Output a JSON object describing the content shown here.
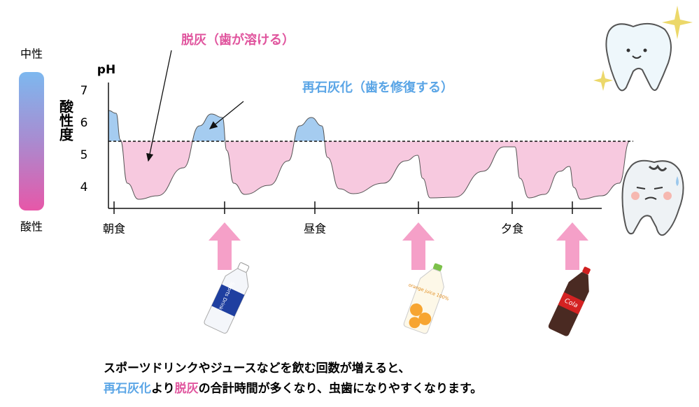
{
  "y_axis": {
    "title": "pH",
    "side_title": "酸性度",
    "yticks": [
      7,
      6,
      5,
      4
    ]
  },
  "scale": {
    "top": "中性",
    "bottom": "酸性"
  },
  "x_axis": {
    "labels": [
      "朝食",
      "昼食",
      "夕食"
    ]
  },
  "annotations": {
    "demineralization": "脱灰（歯が溶ける）",
    "remineralization": "再石灰化（歯を修復する）"
  },
  "drinks": [
    "Sports Drink",
    "orange juice 100%",
    "Cola"
  ],
  "caption": {
    "line1": "スポーツドリンクやジュースなどを飲む回数が増えると、",
    "line2": [
      "再石灰化",
      "より",
      "脱灰",
      "の合計時間が多くなり、虫歯になりやすくなります。"
    ]
  }
}
